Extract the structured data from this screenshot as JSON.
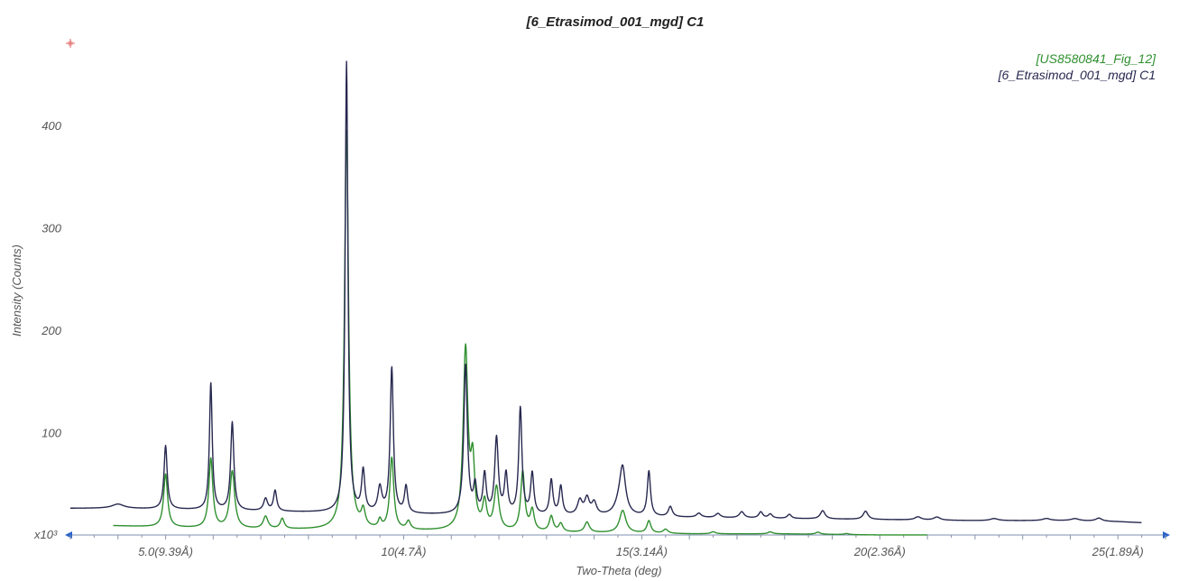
{
  "chart_data": {
    "type": "line",
    "title": "[6_Etrasimod_001_mgd] C1",
    "xlabel": "Two-Theta (deg)",
    "ylabel": "Intensity (Counts)",
    "y_multiplier_label": "x10³",
    "xlim": [
      3.0,
      26.0
    ],
    "ylim": [
      0,
      480
    ],
    "x_ticks": [
      {
        "value": 5,
        "label": "5.0(9.39Å)"
      },
      {
        "value": 10,
        "label": "10(4.7Å)"
      },
      {
        "value": 15,
        "label": "15(3.14Å)"
      },
      {
        "value": 20,
        "label": "20(2.36Å)"
      },
      {
        "value": 25,
        "label": "25(1.89Å)"
      }
    ],
    "y_ticks": [
      {
        "value": 100,
        "label": "100"
      },
      {
        "value": 200,
        "label": "200"
      },
      {
        "value": 300,
        "label": "300"
      },
      {
        "value": 400,
        "label": "400"
      }
    ],
    "legend_position": "top-right",
    "grid": false,
    "series": [
      {
        "name": "[US8580841_Fig_12]",
        "color": "#2f8f2f",
        "baseline": [
          [
            3.9,
            9
          ],
          [
            6,
            6
          ],
          [
            8,
            5
          ],
          [
            10,
            4
          ],
          [
            12,
            3
          ],
          [
            14,
            2
          ],
          [
            16,
            1
          ],
          [
            18,
            1
          ],
          [
            20,
            0
          ],
          [
            21,
            0
          ]
        ],
        "peaks": [
          [
            5.0,
            52,
            0.05
          ],
          [
            5.95,
            68,
            0.05
          ],
          [
            6.4,
            56,
            0.06
          ],
          [
            7.1,
            12,
            0.06
          ],
          [
            7.45,
            10,
            0.05
          ],
          [
            8.8,
            392,
            0.05
          ],
          [
            9.15,
            16,
            0.05
          ],
          [
            9.5,
            8,
            0.04
          ],
          [
            9.75,
            70,
            0.05
          ],
          [
            10.1,
            8,
            0.05
          ],
          [
            11.3,
            176,
            0.06
          ],
          [
            11.45,
            60,
            0.05
          ],
          [
            11.7,
            26,
            0.05
          ],
          [
            11.95,
            42,
            0.06
          ],
          [
            12.5,
            58,
            0.05
          ],
          [
            12.7,
            20,
            0.05
          ],
          [
            13.1,
            15,
            0.05
          ],
          [
            13.3,
            8,
            0.05
          ],
          [
            13.85,
            10,
            0.06
          ],
          [
            14.6,
            22,
            0.08
          ],
          [
            15.15,
            12,
            0.05
          ],
          [
            15.5,
            4,
            0.06
          ],
          [
            16.5,
            2,
            0.06
          ],
          [
            17.7,
            2,
            0.06
          ],
          [
            18.7,
            2,
            0.06
          ],
          [
            19.3,
            1,
            0.06
          ]
        ]
      },
      {
        "name": "[6_Etrasimod_001_mgd] C1",
        "color": "#27284f",
        "baseline": [
          [
            3.0,
            26
          ],
          [
            4.0,
            26
          ],
          [
            5.0,
            25
          ],
          [
            6.0,
            24
          ],
          [
            8.0,
            22
          ],
          [
            10.0,
            20
          ],
          [
            12.0,
            19
          ],
          [
            14.0,
            18
          ],
          [
            16.0,
            17
          ],
          [
            18.0,
            16
          ],
          [
            20.0,
            15
          ],
          [
            22.0,
            14
          ],
          [
            24.0,
            14
          ],
          [
            25.0,
            13
          ],
          [
            25.5,
            12
          ]
        ],
        "peaks": [
          [
            4.0,
            4,
            0.15
          ],
          [
            5.0,
            62,
            0.04
          ],
          [
            5.95,
            124,
            0.035
          ],
          [
            6.4,
            86,
            0.04
          ],
          [
            7.1,
            12,
            0.05
          ],
          [
            7.3,
            20,
            0.04
          ],
          [
            8.8,
            440,
            0.035
          ],
          [
            9.15,
            40,
            0.04
          ],
          [
            9.5,
            24,
            0.05
          ],
          [
            9.75,
            142,
            0.04
          ],
          [
            10.05,
            26,
            0.04
          ],
          [
            11.3,
            146,
            0.045
          ],
          [
            11.5,
            26,
            0.04
          ],
          [
            11.7,
            38,
            0.04
          ],
          [
            11.95,
            74,
            0.045
          ],
          [
            12.15,
            38,
            0.04
          ],
          [
            12.45,
            104,
            0.04
          ],
          [
            12.7,
            40,
            0.04
          ],
          [
            13.1,
            34,
            0.04
          ],
          [
            13.3,
            28,
            0.04
          ],
          [
            13.7,
            14,
            0.06
          ],
          [
            13.85,
            16,
            0.06
          ],
          [
            14.0,
            12,
            0.06
          ],
          [
            14.6,
            38,
            0.07
          ],
          [
            14.55,
            14,
            0.12
          ],
          [
            15.15,
            44,
            0.04
          ],
          [
            15.6,
            10,
            0.05
          ],
          [
            16.2,
            4,
            0.06
          ],
          [
            16.6,
            4,
            0.06
          ],
          [
            17.1,
            6,
            0.06
          ],
          [
            17.5,
            6,
            0.05
          ],
          [
            17.7,
            4,
            0.05
          ],
          [
            18.1,
            4,
            0.05
          ],
          [
            18.8,
            8,
            0.06
          ],
          [
            19.7,
            8,
            0.06
          ],
          [
            20.8,
            3,
            0.08
          ],
          [
            21.2,
            3,
            0.08
          ],
          [
            22.4,
            2,
            0.1
          ],
          [
            23.5,
            2,
            0.1
          ],
          [
            24.1,
            2,
            0.1
          ],
          [
            24.6,
            3,
            0.08
          ]
        ]
      }
    ]
  }
}
